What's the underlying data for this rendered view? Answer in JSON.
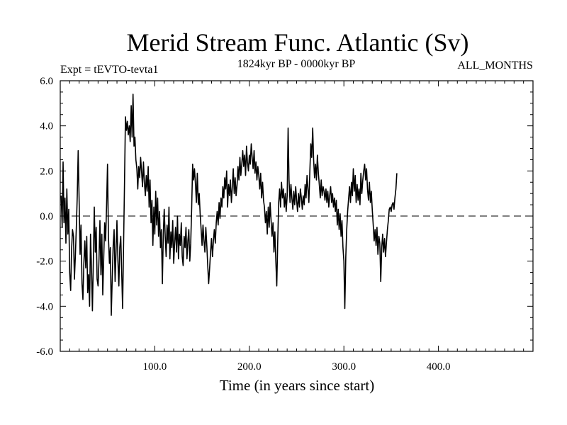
{
  "chart_data": {
    "type": "line",
    "title": "Merid Stream Func. Atlantic (Sv)",
    "subtitle_left": "Expt = tEVTO-tevta1",
    "subtitle_center": "1824kyr BP - 0000kyr BP",
    "subtitle_right": "ALL_MONTHS",
    "xlabel": "Time (in years since start)",
    "ylabel": "",
    "xlim": [
      0,
      500
    ],
    "ylim": [
      -6,
      6
    ],
    "x_ticks": [
      100,
      200,
      300,
      400
    ],
    "x_tick_labels": [
      "100.0",
      "200.0",
      "300.0",
      "400.0"
    ],
    "y_ticks": [
      -6,
      -4,
      -2,
      0,
      2,
      4,
      6
    ],
    "y_tick_labels": [
      "-6.0",
      "-4.0",
      "-2.0",
      "0.0",
      "2.0",
      "4.0",
      "6.0"
    ],
    "reference_line": {
      "y": 0,
      "style": "dashed"
    },
    "grid": false,
    "series": [
      {
        "name": "Merid Stream Func. Atlantic",
        "x_start": 1,
        "x_step": 1,
        "values": [
          0.9,
          -0.5,
          2.4,
          -0.3,
          0.8,
          -1.2,
          1.2,
          -0.8,
          0.3,
          -2.5,
          -3.3,
          -1.5,
          -0.6,
          -0.9,
          -2.8,
          -1.8,
          -0.5,
          0.9,
          2.9,
          0.6,
          -1.7,
          -0.4,
          -3.0,
          -3.7,
          -2.1,
          -1.1,
          -2.3,
          -0.9,
          -3.4,
          -2.6,
          -4.0,
          -0.8,
          -2.2,
          -4.2,
          -2.0,
          0.4,
          -1.6,
          -0.5,
          -2.8,
          -3.1,
          -1.9,
          -0.2,
          -2.6,
          -0.8,
          -3.5,
          -1.8,
          -0.3,
          -1.1,
          0.5,
          2.3,
          -0.9,
          -2.1,
          -1.4,
          -4.4,
          -2.7,
          -1.3,
          -0.6,
          -2.9,
          -1.6,
          -0.2,
          -2.0,
          -3.1,
          -1.4,
          -0.9,
          -2.5,
          -4.1,
          -1.2,
          1.5,
          4.4,
          3.8,
          4.2,
          3.6,
          4.0,
          3.3,
          4.9,
          3.5,
          5.4,
          3.1,
          3.5,
          2.5,
          2.1,
          1.2,
          2.2,
          1.7,
          2.6,
          2.0,
          1.3,
          2.4,
          1.5,
          0.9,
          1.8,
          1.1,
          2.2,
          0.4,
          1.6,
          -0.3,
          0.7,
          -1.3,
          0.4,
          -0.8,
          1.1,
          -0.4,
          0.8,
          -0.9,
          0.2,
          -1.4,
          -0.6,
          -3.0,
          -0.8,
          0.3,
          -0.9,
          -1.8,
          -0.4,
          -1.2,
          0.4,
          -1.9,
          -0.7,
          -1.4,
          -0.2,
          -2.1,
          -1.2,
          -0.5,
          -1.6,
          0.0,
          -1.9,
          -0.8,
          -1.3,
          -0.3,
          -1.8,
          -2.2,
          -0.9,
          -1.4,
          -0.5,
          -1.9,
          -1.1,
          -0.6,
          -2.0,
          -1.2,
          0.3,
          2.3,
          1.6,
          2.1,
          1.4,
          0.6,
          1.9,
          0.5,
          1.0,
          0.1,
          -0.6,
          -1.3,
          -0.4,
          -1.1,
          -1.6,
          -0.5,
          -1.3,
          -2.2,
          -3.0,
          -2.3,
          -1.6,
          -1.0,
          -1.8,
          -1.1,
          -0.6,
          -1.2,
          -0.3,
          0.2,
          -0.4,
          0.6,
          -0.1,
          0.8,
          0.4,
          1.3,
          0.8,
          1.7,
          1.2,
          2.0,
          0.4,
          1.4,
          0.9,
          1.6,
          0.6,
          1.3,
          2.1,
          1.0,
          1.7,
          0.9,
          1.4,
          2.2,
          1.6,
          2.6,
          1.8,
          2.3,
          2.9,
          2.2,
          2.7,
          1.8,
          3.1,
          2.4,
          2.0,
          2.7,
          2.3,
          3.2,
          2.6,
          2.1,
          2.9,
          1.9,
          2.4,
          1.6,
          2.2,
          1.8,
          1.2,
          1.9,
          0.8,
          1.5,
          0.7,
          0.4,
          -0.3,
          0.2,
          -0.8,
          0.4,
          -0.5,
          0.6,
          -0.2,
          -0.9,
          -0.3,
          -1.6,
          -0.7,
          -2.0,
          -3.1,
          -1.2,
          0.6,
          1.2,
          0.4,
          1.5,
          0.8,
          1.2,
          0.4,
          1.0,
          0.2,
          0.9,
          3.9,
          1.6,
          0.6,
          1.4,
          0.8,
          0.3,
          1.1,
          0.5,
          1.3,
          0.7,
          0.2,
          1.0,
          0.4,
          1.2,
          0.8,
          0.3,
          0.9,
          0.5,
          1.4,
          0.8,
          1.8,
          1.2,
          0.6,
          2.0,
          3.2,
          2.6,
          3.9,
          2.5,
          1.7,
          2.3,
          1.6,
          2.7,
          1.9,
          1.4,
          0.8,
          1.6,
          0.9,
          1.3,
          1.1,
          0.7,
          1.2,
          0.6,
          1.1,
          0.4,
          0.9,
          1.3,
          0.6,
          1.0,
          0.4,
          0.8,
          0.2,
          0.7,
          -0.4,
          0.3,
          -0.6,
          0.1,
          -0.9,
          -0.2,
          -1.4,
          -2.0,
          -4.1,
          -1.8,
          -0.6,
          0.2,
          0.8,
          1.3,
          0.6,
          1.5,
          0.9,
          2.1,
          1.1,
          1.8,
          0.6,
          1.4,
          0.7,
          1.2,
          0.5,
          1.9,
          1.0,
          1.6,
          2.0,
          2.3,
          1.6,
          2.1,
          1.2,
          0.7,
          1.5,
          0.6,
          1.1,
          0.3,
          -0.4,
          -1.1,
          -0.6,
          -1.3,
          -0.5,
          -1.7,
          -0.9,
          -1.2,
          -2.9,
          -1.4,
          -0.8,
          -1.6,
          -1.0,
          -1.8,
          -1.2,
          -0.6,
          -0.2,
          0.3,
          0.4,
          0.2,
          0.5,
          0.6,
          0.3,
          0.8,
          1.2,
          1.9
        ]
      }
    ]
  }
}
